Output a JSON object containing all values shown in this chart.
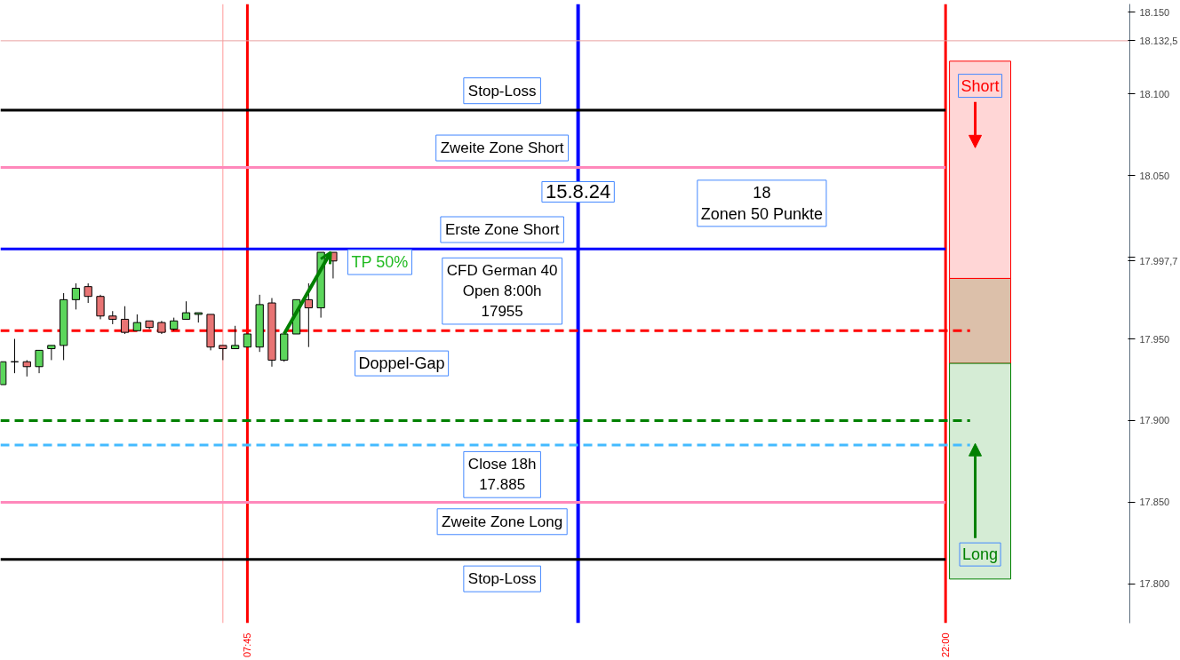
{
  "chart_data": {
    "type": "candlestick",
    "x": [
      2.75,
      3.0,
      3.25,
      3.5,
      3.75,
      4.0,
      4.25,
      4.5,
      4.75,
      5.0,
      5.25,
      5.5,
      5.75,
      6.0,
      6.25,
      6.5,
      6.75,
      7.0,
      7.25,
      7.5,
      7.75,
      8.0,
      8.25,
      8.5,
      8.75,
      9.0,
      9.25,
      9.5
    ],
    "ohlc": [
      [
        17922,
        17936,
        17922,
        17936
      ],
      [
        17936,
        17950,
        17929,
        17936
      ],
      [
        17936,
        17937,
        17927,
        17933
      ],
      [
        17933,
        17943,
        17929,
        17943
      ],
      [
        17944,
        17946,
        17937,
        17946
      ],
      [
        17946,
        17978,
        17937,
        17974
      ],
      [
        17974,
        17984,
        17968,
        17981
      ],
      [
        17982,
        17984,
        17972,
        17976
      ],
      [
        17976,
        17977,
        17962,
        17964
      ],
      [
        17964,
        17967,
        17959,
        17962
      ],
      [
        17962,
        17970,
        17953,
        17954
      ],
      [
        17955,
        17965,
        17955,
        17960
      ],
      [
        17961,
        17961,
        17956,
        17957
      ],
      [
        17960,
        17961,
        17953,
        17954
      ],
      [
        17956,
        17963,
        17955,
        17961
      ],
      [
        17962,
        17973,
        17962,
        17966
      ],
      [
        17965,
        17966,
        17960,
        17966
      ],
      [
        17965,
        17965,
        17943,
        17945
      ],
      [
        17946,
        17946,
        17937,
        17944
      ],
      [
        17944,
        17958,
        17944,
        17946
      ],
      [
        17945,
        17953,
        17945,
        17953
      ],
      [
        17945,
        17977,
        17942,
        17971
      ],
      [
        17972,
        17975,
        17933,
        17937
      ],
      [
        17937,
        17953,
        17936,
        17953
      ],
      [
        17953,
        17974,
        17953,
        17974
      ],
      [
        17974,
        17984,
        17945,
        17969
      ],
      [
        17969,
        18003,
        17963,
        18003
      ],
      [
        18003,
        18003,
        17987,
        17997.7
      ]
    ],
    "colors": [
      "#5cd65c",
      "#000000",
      "#e87474",
      "#5cd65c",
      "#5cd65c",
      "#5cd65c",
      "#5cd65c",
      "#e87474",
      "#e87474",
      "#e87474",
      "#e87474",
      "#5cd65c",
      "#e87474",
      "#e87474",
      "#5cd65c",
      "#5cd65c",
      "#5cd65c",
      "#e87474",
      "#e87474",
      "#5cd65c",
      "#5cd65c",
      "#5cd65c",
      "#e87474",
      "#5cd65c",
      "#5cd65c",
      "#e87474",
      "#5cd65c",
      "#e87474"
    ],
    "xlim": [
      2.71,
      25.76
    ],
    "xticks": [
      {
        "value": 7.75,
        "label": "07:45"
      },
      {
        "value": 22,
        "label": "22:00"
      }
    ],
    "ylim": [
      17776,
      18155
    ],
    "yticks": [
      {
        "value": 17800,
        "label": "17.800"
      },
      {
        "value": 17850,
        "label": "17.850"
      },
      {
        "value": 17900,
        "label": "17.900"
      },
      {
        "value": 17950,
        "label": "17.950"
      },
      {
        "value": 17997.7,
        "label": "17.997,7"
      },
      {
        "value": 18000,
        "label": null
      },
      {
        "value": 18050,
        "label": "18.050"
      },
      {
        "value": 18100,
        "label": "18.100"
      },
      {
        "value": 18132.5,
        "label": "18.132,5"
      },
      {
        "value": 18150,
        "label": "18.150"
      }
    ],
    "ref_lines": [
      {
        "axis": "x",
        "value": 7.25,
        "label": null,
        "color": "#ff9999",
        "line_style": "solid"
      },
      {
        "axis": "x",
        "value": 7.75,
        "label": null,
        "color": "#ff0000",
        "line_style": "solid"
      },
      {
        "axis": "x",
        "value": 14.5,
        "label": null,
        "color": "#0000ff",
        "line_style": "solid"
      },
      {
        "axis": "x",
        "value": 22,
        "label": null,
        "color": "#ff0000",
        "line_style": "solid"
      },
      {
        "axis": "y",
        "value": 18132.5,
        "label": null,
        "color": "#e8a0a0",
        "line_style": "solid"
      },
      {
        "axis": "y",
        "value": 18090,
        "label": "Stop-Loss",
        "color": "#000000",
        "line_style": "solid"
      },
      {
        "axis": "y",
        "value": 18055,
        "label": "Zweite Zone Short",
        "color": "#ff88bb",
        "line_style": "solid"
      },
      {
        "axis": "y",
        "value": 18005,
        "label": "Erste Zone Short",
        "color": "#0000ff",
        "line_style": "solid"
      },
      {
        "axis": "y",
        "value": 17955,
        "label": "CFD German 40\nOpen 8:00h\n17955",
        "color": "#ff0000",
        "line_style": "dashed"
      },
      {
        "axis": "y",
        "value": 17900,
        "label": null,
        "color": "#008000",
        "line_style": "dashed"
      },
      {
        "axis": "y",
        "value": 17885,
        "label": "Close 18h\n17.885",
        "color": "#44bbff",
        "line_style": "dashed"
      },
      {
        "axis": "y",
        "value": 17850,
        "label": "Zweite Zone Long",
        "color": "#ff88bb",
        "line_style": "solid"
      },
      {
        "axis": "y",
        "value": 17815,
        "label": "Stop-Loss",
        "color": "#000000",
        "line_style": "solid"
      }
    ],
    "bands": [
      {
        "axis": "y",
        "from": 17987,
        "to": 18120,
        "label": "Short",
        "color": "#ffd6d6"
      },
      {
        "axis": "y",
        "from": 17935,
        "to": 17987,
        "label": null,
        "color": "#dcc0aa"
      },
      {
        "axis": "y",
        "from": 17935,
        "to": 17803,
        "label": "Long",
        "color": "#d5ecd5"
      }
    ],
    "annotations": [
      "15.8.24",
      "18\nZonen 50 Punkte",
      {
        "text": "TP 50%",
        "x": 9.5,
        "y": 18003
      },
      "Doppel-Gap"
    ]
  }
}
